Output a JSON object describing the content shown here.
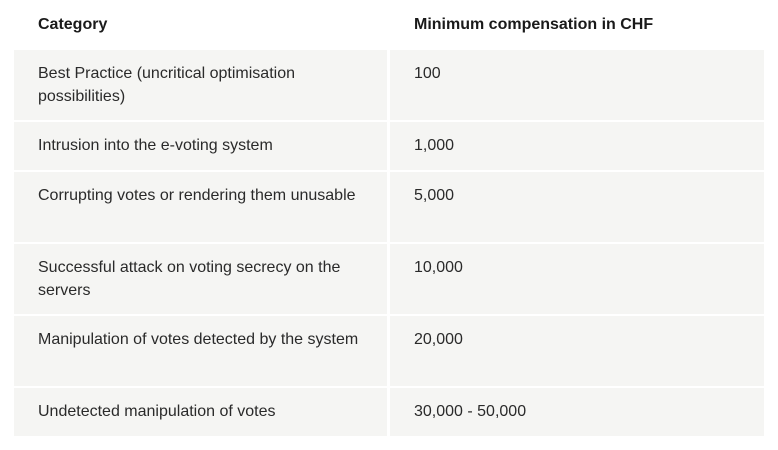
{
  "table": {
    "headers": {
      "category": "Category",
      "compensation": "Minimum compensation in CHF"
    },
    "rows": [
      {
        "category": "Best Practice (uncritical optimisation possibilities)",
        "compensation": "100"
      },
      {
        "category": "Intrusion into the e-voting system",
        "compensation": "1,000"
      },
      {
        "category": "Corrupting votes or rendering them unusable",
        "compensation": "5,000"
      },
      {
        "category": "Successful attack on voting secrecy on the servers",
        "compensation": "10,000"
      },
      {
        "category": "Manipulation of votes detected by the system",
        "compensation": "20,000"
      },
      {
        "category": "Undetected manipulation of votes",
        "compensation": "30,000 - 50,000"
      }
    ]
  }
}
